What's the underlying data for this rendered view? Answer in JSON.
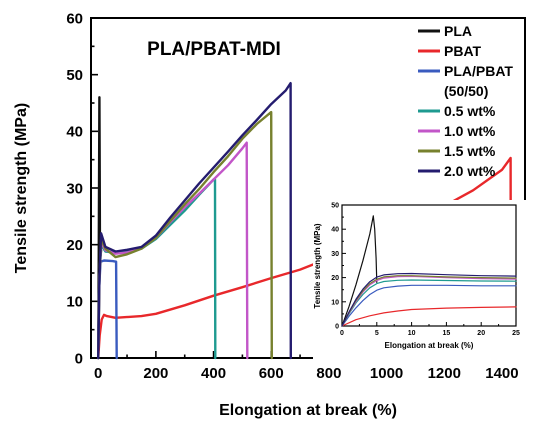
{
  "chart_data": [
    {
      "type": "line",
      "title": "PLA/PBAT-MDI",
      "xlabel": "Elongation at break (%)",
      "ylabel": "Tensile strength (MPa)",
      "xlim": [
        -25,
        1480
      ],
      "ylim": [
        0,
        60
      ],
      "xticks": [
        "0",
        "200",
        "400",
        "600",
        "800",
        "1000",
        "1200",
        "1400"
      ],
      "yticks": [
        "0",
        "10",
        "20",
        "30",
        "40",
        "50",
        "60"
      ],
      "grid": false,
      "legend_position": "top-right",
      "legend_labels": [
        "PLA",
        "PBAT",
        "PLA/PBAT",
        "(50/50)",
        "0.5 wt%",
        "1.0 wt%",
        "1.5 wt%",
        "2.0 wt%"
      ],
      "series": [
        {
          "name": "PLA",
          "color": "#111111",
          "points": [
            [
              0,
              0
            ],
            [
              1,
              8
            ],
            [
              2,
              20
            ],
            [
              4,
              46
            ],
            [
              5,
              33
            ],
            [
              6,
              22
            ],
            [
              8,
              18
            ],
            [
              10,
              19
            ]
          ]
        },
        {
          "name": "PBAT",
          "color": "#e8282b",
          "points": [
            [
              0,
              0
            ],
            [
              5,
              4
            ],
            [
              12,
              6.8
            ],
            [
              20,
              7.6
            ],
            [
              30,
              7.4
            ],
            [
              60,
              7.1
            ],
            [
              150,
              7.4
            ],
            [
              200,
              7.8
            ],
            [
              300,
              9.3
            ],
            [
              400,
              11.0
            ],
            [
              500,
              12.5
            ],
            [
              600,
              14.1
            ],
            [
              700,
              15.6
            ],
            [
              800,
              17.6
            ],
            [
              900,
              19.7
            ],
            [
              1000,
              21.9
            ],
            [
              1100,
              24.3
            ],
            [
              1200,
              26.8
            ],
            [
              1300,
              29.6
            ],
            [
              1400,
              33.2
            ],
            [
              1430,
              35.3
            ],
            [
              1431,
              0
            ]
          ]
        },
        {
          "name": "PLA/PBAT (50/50)",
          "color": "#3a5bbf",
          "points": [
            [
              0,
              0
            ],
            [
              3,
              12
            ],
            [
              8,
              17
            ],
            [
              20,
              17.2
            ],
            [
              50,
              17.1
            ],
            [
              62,
              17
            ],
            [
              64,
              0
            ]
          ]
        },
        {
          "name": "0.5 wt%",
          "color": "#1e9a90",
          "points": [
            [
              0,
              0
            ],
            [
              4,
              14
            ],
            [
              10,
              20
            ],
            [
              25,
              18.8
            ],
            [
              60,
              18.6
            ],
            [
              100,
              18.8
            ],
            [
              150,
              19.3
            ],
            [
              200,
              21
            ],
            [
              250,
              23.5
            ],
            [
              300,
              26
            ],
            [
              350,
              28.8
            ],
            [
              400,
              31.5
            ],
            [
              405,
              31.5
            ],
            [
              406,
              0
            ]
          ]
        },
        {
          "name": "1.0 wt%",
          "color": "#c256c8",
          "points": [
            [
              0,
              0
            ],
            [
              4,
              14
            ],
            [
              10,
              20.5
            ],
            [
              25,
              19
            ],
            [
              60,
              18.4
            ],
            [
              100,
              18.6
            ],
            [
              150,
              19.4
            ],
            [
              200,
              21.2
            ],
            [
              250,
              24
            ],
            [
              300,
              26.6
            ],
            [
              350,
              29
            ],
            [
              400,
              31.5
            ],
            [
              450,
              34
            ],
            [
              500,
              37
            ],
            [
              515,
              38
            ],
            [
              517,
              0
            ]
          ]
        },
        {
          "name": "1.5 wt%",
          "color": "#77812e",
          "points": [
            [
              0,
              0
            ],
            [
              4,
              14
            ],
            [
              10,
              21
            ],
            [
              25,
              19.3
            ],
            [
              60,
              17.8
            ],
            [
              100,
              18.3
            ],
            [
              150,
              19.3
            ],
            [
              200,
              21.2
            ],
            [
              250,
              24.2
            ],
            [
              300,
              27.1
            ],
            [
              350,
              29.8
            ],
            [
              400,
              32.8
            ],
            [
              450,
              35.6
            ],
            [
              500,
              38.7
            ],
            [
              550,
              41.3
            ],
            [
              600,
              43.4
            ],
            [
              602,
              0
            ]
          ]
        },
        {
          "name": "2.0 wt%",
          "color": "#241c6f",
          "points": [
            [
              0,
              0
            ],
            [
              4,
              14
            ],
            [
              10,
              22
            ],
            [
              25,
              19.6
            ],
            [
              60,
              18.8
            ],
            [
              100,
              19.1
            ],
            [
              150,
              19.6
            ],
            [
              200,
              21.6
            ],
            [
              250,
              24.8
            ],
            [
              300,
              27.8
            ],
            [
              350,
              30.8
            ],
            [
              400,
              33.6
            ],
            [
              450,
              36.4
            ],
            [
              500,
              39.3
            ],
            [
              550,
              42
            ],
            [
              600,
              44.8
            ],
            [
              650,
              47.2
            ],
            [
              667,
              48.5
            ],
            [
              668,
              0
            ]
          ]
        }
      ]
    },
    {
      "type": "line",
      "title": "",
      "xlabel": "Elongation at break (%)",
      "ylabel": "Tensile strength (MPa)",
      "xlim": [
        0,
        25
      ],
      "ylim": [
        0,
        50
      ],
      "xticks": [
        "0",
        "5",
        "10",
        "15",
        "20",
        "25"
      ],
      "yticks": [
        "0",
        "10",
        "20",
        "30",
        "40",
        "50"
      ],
      "grid": false,
      "series": [
        {
          "name": "PLA",
          "color": "#111111",
          "points": [
            [
              0,
              0
            ],
            [
              1,
              8
            ],
            [
              2,
              17
            ],
            [
              3,
              27
            ],
            [
              4,
              38
            ],
            [
              4.5,
              45.5
            ],
            [
              4.7,
              40
            ],
            [
              4.9,
              28
            ],
            [
              5,
              18
            ]
          ]
        },
        {
          "name": "PBAT",
          "color": "#e8282b",
          "points": [
            [
              0,
              0
            ],
            [
              2,
              2.6
            ],
            [
              4,
              4.2
            ],
            [
              6,
              5.4
            ],
            [
              8,
              6.2
            ],
            [
              10,
              6.8
            ],
            [
              15,
              7.4
            ],
            [
              20,
              7.7
            ],
            [
              25,
              7.9
            ]
          ]
        },
        {
          "name": "PLA/PBAT (50/50)",
          "color": "#3a5bbf",
          "points": [
            [
              0,
              0
            ],
            [
              1,
              4
            ],
            [
              2,
              7.5
            ],
            [
              3,
              10.5
            ],
            [
              4,
              13
            ],
            [
              5,
              14.8
            ],
            [
              6,
              15.8
            ],
            [
              8,
              16.5
            ],
            [
              10,
              16.8
            ],
            [
              15,
              16.8
            ],
            [
              20,
              16.6
            ],
            [
              25,
              16.6
            ]
          ]
        },
        {
          "name": "0.5 wt%",
          "color": "#1e9a90",
          "points": [
            [
              0,
              0
            ],
            [
              1,
              5
            ],
            [
              2,
              9.5
            ],
            [
              3,
              13
            ],
            [
              4,
              15.8
            ],
            [
              5,
              17.5
            ],
            [
              6,
              18.4
            ],
            [
              8,
              18.9
            ],
            [
              10,
              19
            ],
            [
              15,
              18.8
            ],
            [
              20,
              18.6
            ],
            [
              25,
              18.5
            ]
          ]
        },
        {
          "name": "1.0 wt%",
          "color": "#c256c8",
          "points": [
            [
              0,
              0
            ],
            [
              1,
              5.3
            ],
            [
              2,
              10
            ],
            [
              3,
              14
            ],
            [
              4,
              17
            ],
            [
              5,
              18.8
            ],
            [
              6,
              19.8
            ],
            [
              8,
              20.4
            ],
            [
              10,
              20.5
            ],
            [
              15,
              20
            ],
            [
              20,
              19.6
            ],
            [
              25,
              19.4
            ]
          ]
        },
        {
          "name": "1.5 wt%",
          "color": "#77812e",
          "points": [
            [
              0,
              0
            ],
            [
              1,
              5.5
            ],
            [
              2,
              10.5
            ],
            [
              3,
              14.5
            ],
            [
              4,
              17.5
            ],
            [
              5,
              19.3
            ],
            [
              6,
              20.3
            ],
            [
              8,
              20.8
            ],
            [
              10,
              20.8
            ],
            [
              15,
              20.3
            ],
            [
              20,
              20
            ],
            [
              25,
              19.8
            ]
          ]
        },
        {
          "name": "2.0 wt%",
          "color": "#241c6f",
          "points": [
            [
              0,
              0
            ],
            [
              1,
              5.8
            ],
            [
              2,
              11
            ],
            [
              3,
              15.2
            ],
            [
              4,
              18.3
            ],
            [
              5,
              20.2
            ],
            [
              6,
              21.1
            ],
            [
              8,
              21.6
            ],
            [
              10,
              21.7
            ],
            [
              15,
              21.2
            ],
            [
              20,
              20.8
            ],
            [
              25,
              20.6
            ]
          ]
        }
      ]
    }
  ]
}
